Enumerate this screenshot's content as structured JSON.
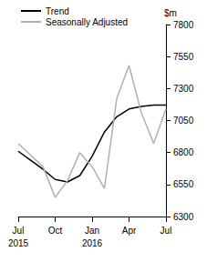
{
  "chart_data": {
    "type": "line",
    "y_label": "$m",
    "categories": [
      "Jul\n2015",
      null,
      null,
      "Oct",
      null,
      null,
      "Jan\n2016",
      null,
      null,
      "Apr",
      null,
      null,
      "Jul"
    ],
    "series": [
      {
        "name": "Trend",
        "color": "#000000",
        "values": [
          6810,
          6740,
          6670,
          6590,
          6570,
          6620,
          6770,
          6960,
          7080,
          7140,
          7160,
          7170,
          7170
        ]
      },
      {
        "name": "Seasonally Adjusted",
        "color": "#b0b0b0",
        "values": [
          6870,
          6780,
          6690,
          6450,
          6580,
          6800,
          6690,
          6520,
          7220,
          7480,
          7110,
          6870,
          7140
        ]
      }
    ],
    "ylim": [
      6300,
      7800
    ],
    "yticks": [
      6300,
      6550,
      6800,
      7050,
      7300,
      7550,
      7800
    ],
    "grid": false,
    "legend": "upper left"
  }
}
